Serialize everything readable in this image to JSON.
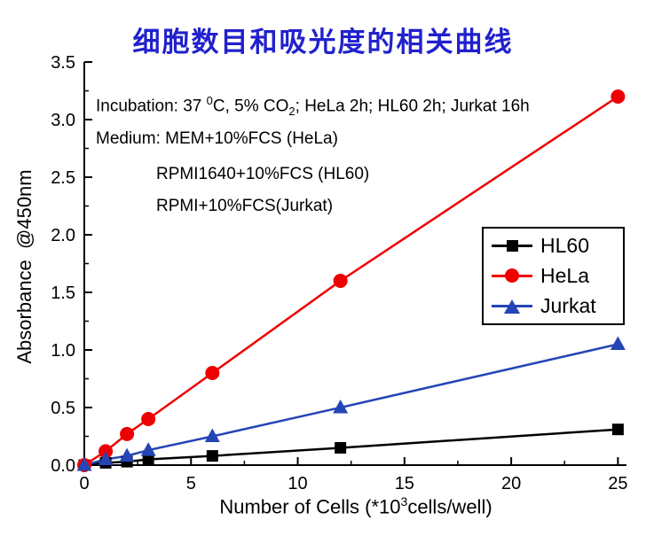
{
  "title": "细胞数目和吸光度的相关曲线",
  "title_color": "#2121cd",
  "display": {
    "anno1": {
      "pre": "Incubation: 37 ",
      "sup": "0",
      "mid": "C, 5% CO",
      "sub": "2",
      "post": "; HeLa 2h; HL60 2h; Jurkat 16h"
    },
    "anno2": "Medium: MEM+10%FCS (HeLa)",
    "anno3": "RPMI1640+10%FCS (HL60)",
    "anno4": "RPMI+10%FCS(Jurkat)",
    "xlabel_parts": {
      "pre": "Number of Cells (*10",
      "sup": "3",
      "post": "cells/well)"
    },
    "ylabel": "Absorbance  @450nm"
  },
  "chart_data": {
    "type": "line",
    "title": "细胞数目和吸光度的相关曲线",
    "xlabel": "Number of Cells (*10^3 cells/well)",
    "ylabel": "Absorbance @450nm",
    "x": [
      0,
      1,
      2,
      3,
      6,
      12,
      25
    ],
    "series": [
      {
        "name": "HL60",
        "marker": "square",
        "color": "#000000",
        "values": [
          0,
          0.02,
          0.03,
          0.05,
          0.08,
          0.15,
          0.31
        ]
      },
      {
        "name": "HeLa",
        "marker": "circle",
        "color": "#ee0000",
        "values": [
          0,
          0.12,
          0.27,
          0.4,
          0.8,
          1.6,
          3.2
        ]
      },
      {
        "name": "Jurkat",
        "marker": "triangle",
        "color": "#2545b5",
        "values": [
          0,
          0.05,
          0.08,
          0.13,
          0.25,
          0.5,
          1.05
        ]
      }
    ],
    "xlim": [
      0,
      25.4
    ],
    "ylim": [
      0,
      3.5
    ],
    "x_major_ticks": [
      0,
      5,
      10,
      15,
      20,
      25
    ],
    "x_tick_labels": [
      "0",
      "5",
      "10",
      "15",
      "20",
      "25"
    ],
    "y_major_ticks": [
      0,
      0.5,
      1.0,
      1.5,
      2.0,
      2.5,
      3.0,
      3.5
    ],
    "y_tick_labels": [
      "0.0",
      "0.5",
      "1.0",
      "1.5",
      "2.0",
      "2.5",
      "3.0",
      "3.5"
    ],
    "grid": false,
    "legend_position": "middle-right",
    "annotations": [
      "Incubation: 37 0C, 5% CO2; HeLa 2h; HL60 2h; Jurkat 16h",
      "Medium: MEM+10%FCS (HeLa)",
      "RPMI1640+10%FCS (HL60)",
      "RPMI+10%FCS(Jurkat)"
    ]
  }
}
